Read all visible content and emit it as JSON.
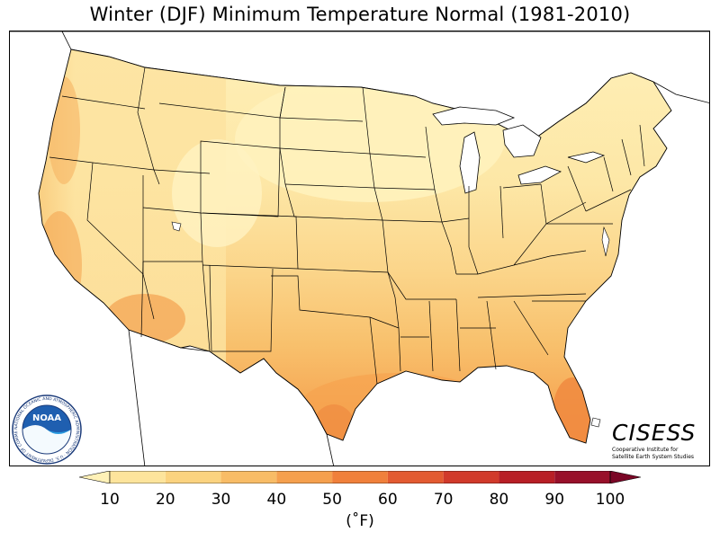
{
  "title": "Winter (DJF) Minimum Temperature Normal (1981-2010)",
  "colorbar": {
    "ticks": [
      "10",
      "20",
      "30",
      "40",
      "50",
      "60",
      "70",
      "80",
      "90",
      "100"
    ],
    "unit": "(˚F)",
    "colors": [
      "#fff1b7",
      "#fde49c",
      "#fbd37f",
      "#f8bc66",
      "#f5a04e",
      "#f0803b",
      "#e35b31",
      "#d13a2b",
      "#b81f26",
      "#98102a",
      "#7a0626"
    ]
  },
  "logos": {
    "noaa": {
      "label": "NOAA",
      "ring_text": "NATIONAL OCEANIC AND ATMOSPHERIC ADMINISTRATION · U.S. DEPARTMENT OF COMMERCE"
    },
    "cisess": {
      "name": "CISESS",
      "subtitle_line1": "Cooperative Institute for",
      "subtitle_line2": "Satellite Earth System Studies"
    }
  },
  "map": {
    "region": "Contiguous United States",
    "land_color": "#fbe3a0",
    "water_color": "#ffffff",
    "boundary_color": "#000000"
  }
}
